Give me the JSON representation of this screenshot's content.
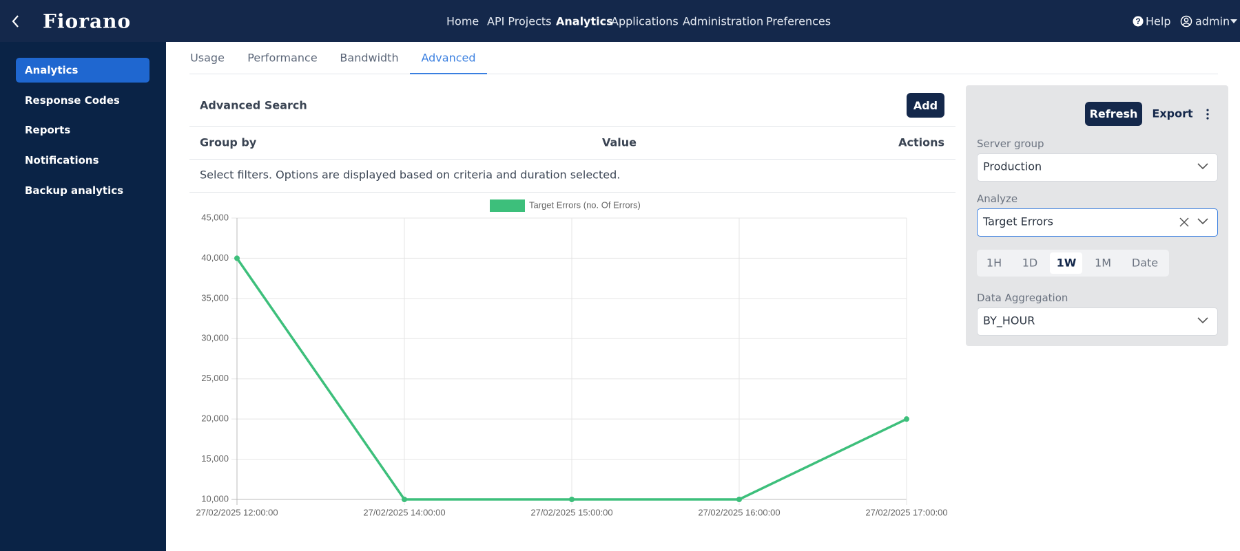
{
  "header": {
    "logo": "Fiorano",
    "nav": [
      "Home",
      "API Projects",
      "Analytics",
      "Applications",
      "Administration",
      "Preferences"
    ],
    "help": "Help",
    "user": "admin"
  },
  "sidebar": {
    "items": [
      "Analytics",
      "Response Codes",
      "Reports",
      "Notifications",
      "Backup analytics"
    ]
  },
  "tabs": {
    "items": [
      "Usage",
      "Performance",
      "Bandwidth",
      "Advanced"
    ]
  },
  "search": {
    "title": "Advanced Search",
    "add_button": "Add",
    "columns": [
      "Group by",
      "Value",
      "Actions"
    ],
    "hint": "Select filters. Options are displayed based on criteria and duration selected."
  },
  "panel": {
    "refresh": "Refresh",
    "export": "Export",
    "server_group_label": "Server group",
    "server_group_value": "Production",
    "analyze_label": "Analyze",
    "analyze_value": "Target Errors",
    "durations": [
      "1H",
      "1D",
      "1W",
      "1M",
      "Date"
    ],
    "aggregation_label": "Data Aggregation",
    "aggregation_value": "BY_HOUR"
  },
  "chart_data": {
    "type": "line",
    "categories": [
      "27/02/2025 12:00:00",
      "27/02/2025 14:00:00",
      "27/02/2025 15:00:00",
      "27/02/2025 16:00:00",
      "27/02/2025 17:00:00"
    ],
    "series": [
      {
        "name": "Target Errors (no. Of Errors)",
        "color": "#3dbf7b",
        "values": [
          40000,
          10000,
          10000,
          10000,
          20000
        ]
      }
    ],
    "ylim": [
      10000,
      45000
    ],
    "yticks": [
      {
        "value": 10000,
        "label": "10,000"
      },
      {
        "value": 15000,
        "label": "15,000"
      },
      {
        "value": 20000,
        "label": "20,000"
      },
      {
        "value": 25000,
        "label": "25,000"
      },
      {
        "value": 30000,
        "label": "30,000"
      },
      {
        "value": 35000,
        "label": "35,000"
      },
      {
        "value": 40000,
        "label": "40,000"
      },
      {
        "value": 45000,
        "label": "45,000"
      }
    ],
    "grid": true
  }
}
